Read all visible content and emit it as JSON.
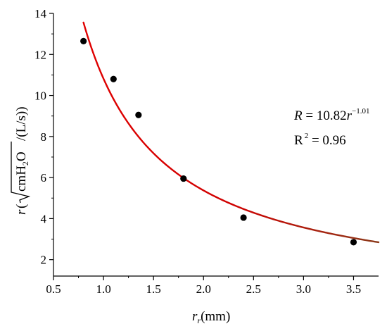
{
  "chart_data": {
    "type": "scatter",
    "title": "",
    "xlim": [
      0.5,
      3.75
    ],
    "ylim": [
      1.2,
      14.0
    ],
    "x_ticks": [
      0.5,
      1.0,
      1.5,
      2.0,
      2.5,
      3.0,
      3.5
    ],
    "x_tick_labels": [
      "0.5",
      "1.0",
      "1.5",
      "2.0",
      "2.5",
      "3.0",
      "3.5"
    ],
    "y_ticks": [
      2,
      4,
      6,
      8,
      10,
      12,
      14
    ],
    "y_tick_labels": [
      "2",
      "4",
      "6",
      "8",
      "10",
      "12",
      "14"
    ],
    "xlabel": {
      "main": "r",
      "sub": "r",
      "rest": "(mm)"
    },
    "ylabel": {
      "var": "r",
      "chem": "cmH",
      "chem_sub": "2",
      "chem_end": "O",
      "rest": "/(L/s))"
    },
    "grid": false,
    "points": [
      {
        "x": 0.8,
        "y": 12.65
      },
      {
        "x": 1.1,
        "y": 10.8
      },
      {
        "x": 1.35,
        "y": 9.05
      },
      {
        "x": 1.8,
        "y": 5.95
      },
      {
        "x": 2.4,
        "y": 4.05
      },
      {
        "x": 3.5,
        "y": 2.85
      }
    ],
    "fit": {
      "coefficient": 10.82,
      "exponent": -1.01,
      "x_start": 0.8,
      "x_end": 3.75,
      "color_start": "#e00000",
      "color_end": "#8b3a1a"
    },
    "annotations": {
      "equation": {
        "lhs": "R",
        "eq": " = 10.82",
        "var": "r",
        "exp": "−1.01"
      },
      "r_squared": {
        "label": "R",
        "sup": "2",
        "value": " = 0.96"
      }
    },
    "point_color": "#000000"
  }
}
